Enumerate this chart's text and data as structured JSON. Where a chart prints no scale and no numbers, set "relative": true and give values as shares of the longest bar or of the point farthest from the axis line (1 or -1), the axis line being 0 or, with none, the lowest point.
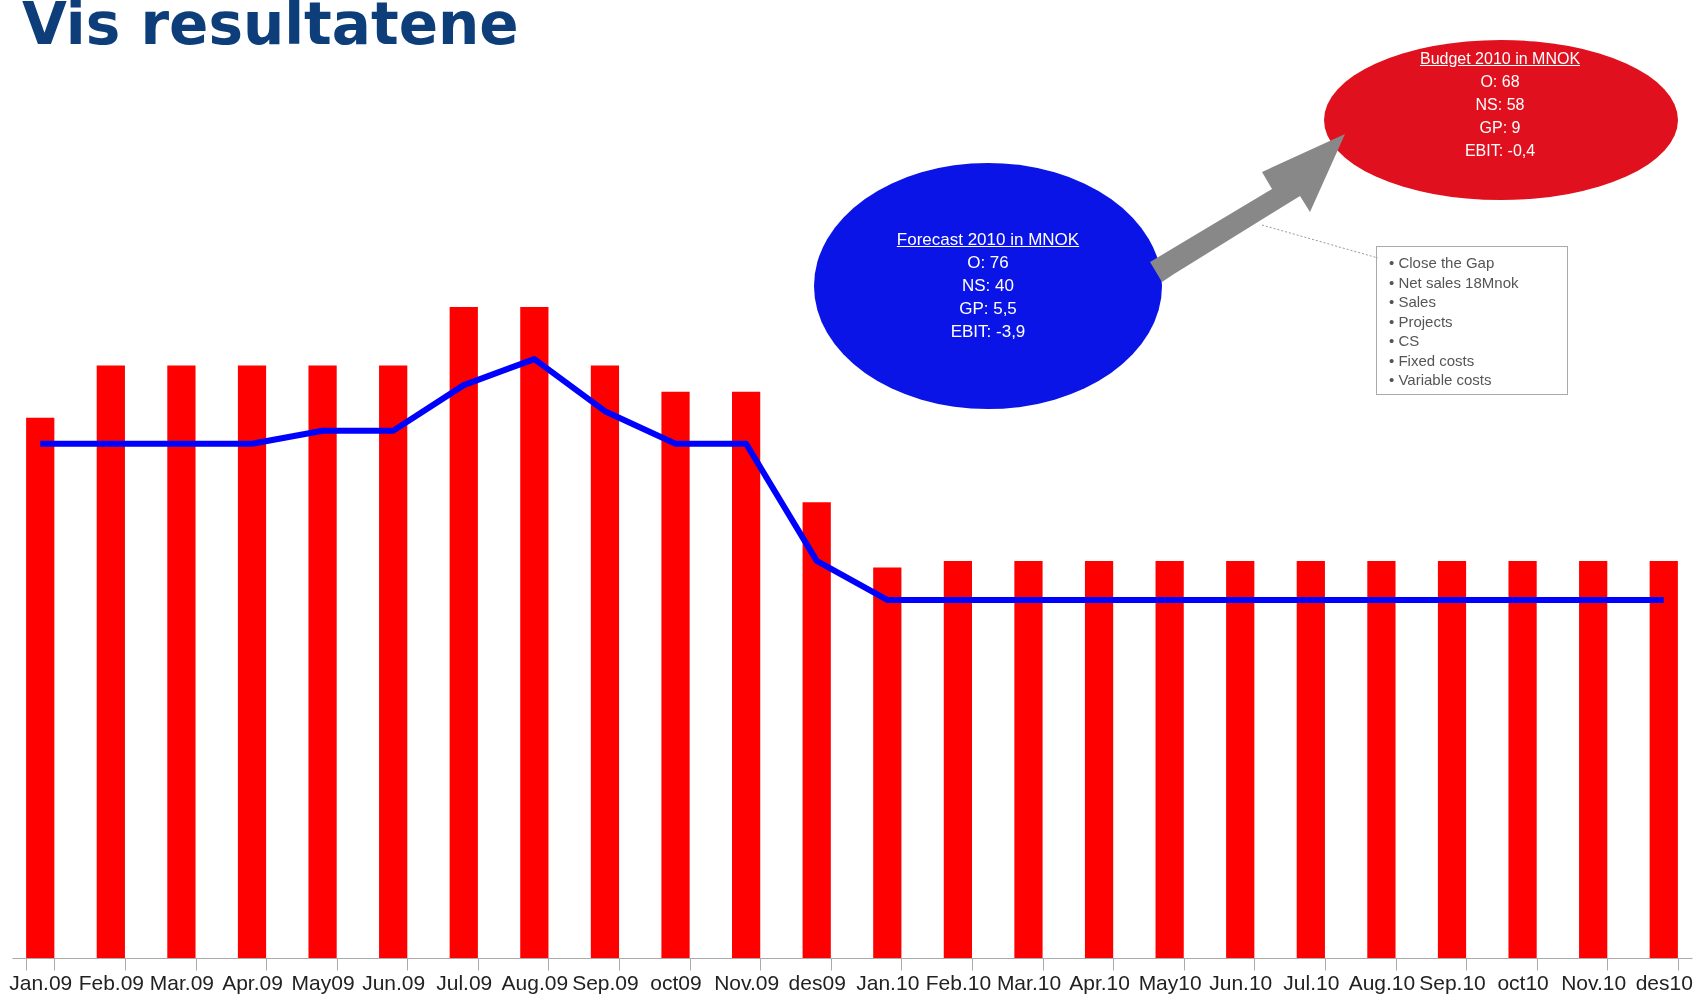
{
  "chart_data": {
    "type": "bar",
    "title": "Vis resultatene",
    "relative": true,
    "grid": false,
    "categories": [
      "Jan.09",
      "Feb.09",
      "Mar.09",
      "Apr.09",
      "May09",
      "Jun.09",
      "Jul.09",
      "Aug.09",
      "Sep.09",
      "oct09",
      "Nov.09",
      "des09",
      "Jan.10",
      "Feb.10",
      "Mar.10",
      "Apr.10",
      "May10",
      "Jun.10",
      "Jul.10",
      "Aug.10",
      "Sep.10",
      "oct10",
      "Nov.10",
      "des10"
    ],
    "series": [
      {
        "color": "#ff0000",
        "values": [
          0.83,
          0.91,
          0.91,
          0.91,
          0.91,
          0.91,
          1,
          1,
          0.91,
          0.87,
          0.87,
          0.7,
          0.6,
          0.61,
          0.61,
          0.61,
          0.61,
          0.61,
          0.61,
          0.61,
          0.61,
          0.61,
          0.61,
          0.61
        ]
      },
      {
        "type": "line",
        "color": "#0000ff",
        "values": [
          0.79,
          0.79,
          0.79,
          0.79,
          0.81,
          0.81,
          0.88,
          0.92,
          0.84,
          0.79,
          0.79,
          0.61,
          0.55,
          0.55,
          0.55,
          0.55,
          0.55,
          0.55,
          0.55,
          0.55,
          0.55,
          0.55,
          0.55,
          0.55
        ]
      }
    ],
    "annotations": [
      "Forecast 2010 in MNOK\nO: 76\nNS: 40\nGP: 5,5\nEBIT: -3,9",
      "Budget 2010 in MNOK\nO: 68\nNS: 58\nGP: 9\nEBIT: -0,4",
      "• Close the Gap\n• Net sales 18Mnok\n• Sales\n• Projects\n• CS\n• Fixed costs\n• Variable costs"
    ]
  }
}
